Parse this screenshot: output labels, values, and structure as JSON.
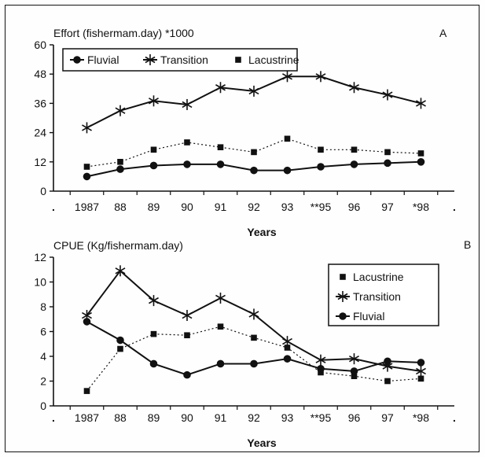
{
  "chart_data": [
    {
      "type": "line",
      "panel_label": "A",
      "title": "Effort (fishermam.day) *1000",
      "xlabel": "Years",
      "ylabel": "",
      "categories": [
        ".",
        "1987",
        "88",
        "89",
        "90",
        "91",
        "92",
        "93",
        "**95",
        "96",
        "97",
        "*98",
        "."
      ],
      "ylim": [
        0,
        60
      ],
      "yticks": [
        0,
        12,
        24,
        36,
        48,
        60
      ],
      "grid": false,
      "legend": "top-left",
      "legend_order": [
        "Fluvial",
        "Transition",
        "Lacustrine"
      ],
      "series": [
        {
          "name": "Fluvial",
          "marker": "circle",
          "line": "solid",
          "values": [
            null,
            6,
            9,
            10.5,
            11,
            11,
            8.5,
            8.5,
            10,
            11,
            11.5,
            12,
            null
          ]
        },
        {
          "name": "Transition",
          "marker": "star",
          "line": "solid",
          "values": [
            null,
            26,
            33,
            37,
            35.5,
            42.5,
            41,
            47,
            47,
            42.5,
            39.5,
            36,
            null
          ]
        },
        {
          "name": "Lacustrine",
          "marker": "square",
          "line": "dotted",
          "values": [
            null,
            10,
            12,
            17,
            20,
            18,
            16,
            21.5,
            17,
            17,
            16,
            15.5,
            null
          ]
        }
      ]
    },
    {
      "type": "line",
      "panel_label": "B",
      "title": "CPUE (Kg/fishermam.day)",
      "xlabel": "Years",
      "ylabel": "",
      "categories": [
        ".",
        "1987",
        "88",
        "89",
        "90",
        "91",
        "92",
        "93",
        "**95",
        "96",
        "97",
        "*98",
        "."
      ],
      "ylim": [
        0,
        12
      ],
      "yticks": [
        0,
        2,
        4,
        6,
        8,
        10,
        12
      ],
      "grid": false,
      "legend": "right",
      "legend_order": [
        "Lacustrine",
        "Transition",
        "Fluvial"
      ],
      "series": [
        {
          "name": "Lacustrine",
          "marker": "square",
          "line": "dotted",
          "values": [
            null,
            1.2,
            4.6,
            5.8,
            5.7,
            6.4,
            5.5,
            4.7,
            2.7,
            2.4,
            2.0,
            2.2,
            null
          ]
        },
        {
          "name": "Transition",
          "marker": "star",
          "line": "solid",
          "values": [
            null,
            7.3,
            10.9,
            8.5,
            7.3,
            8.7,
            7.4,
            5.2,
            3.7,
            3.8,
            3.2,
            2.8,
            null
          ]
        },
        {
          "name": "Fluvial",
          "marker": "circle",
          "line": "solid",
          "values": [
            null,
            6.8,
            5.3,
            3.4,
            2.5,
            3.4,
            3.4,
            3.8,
            3.0,
            2.8,
            3.6,
            3.5,
            null
          ]
        }
      ]
    }
  ]
}
